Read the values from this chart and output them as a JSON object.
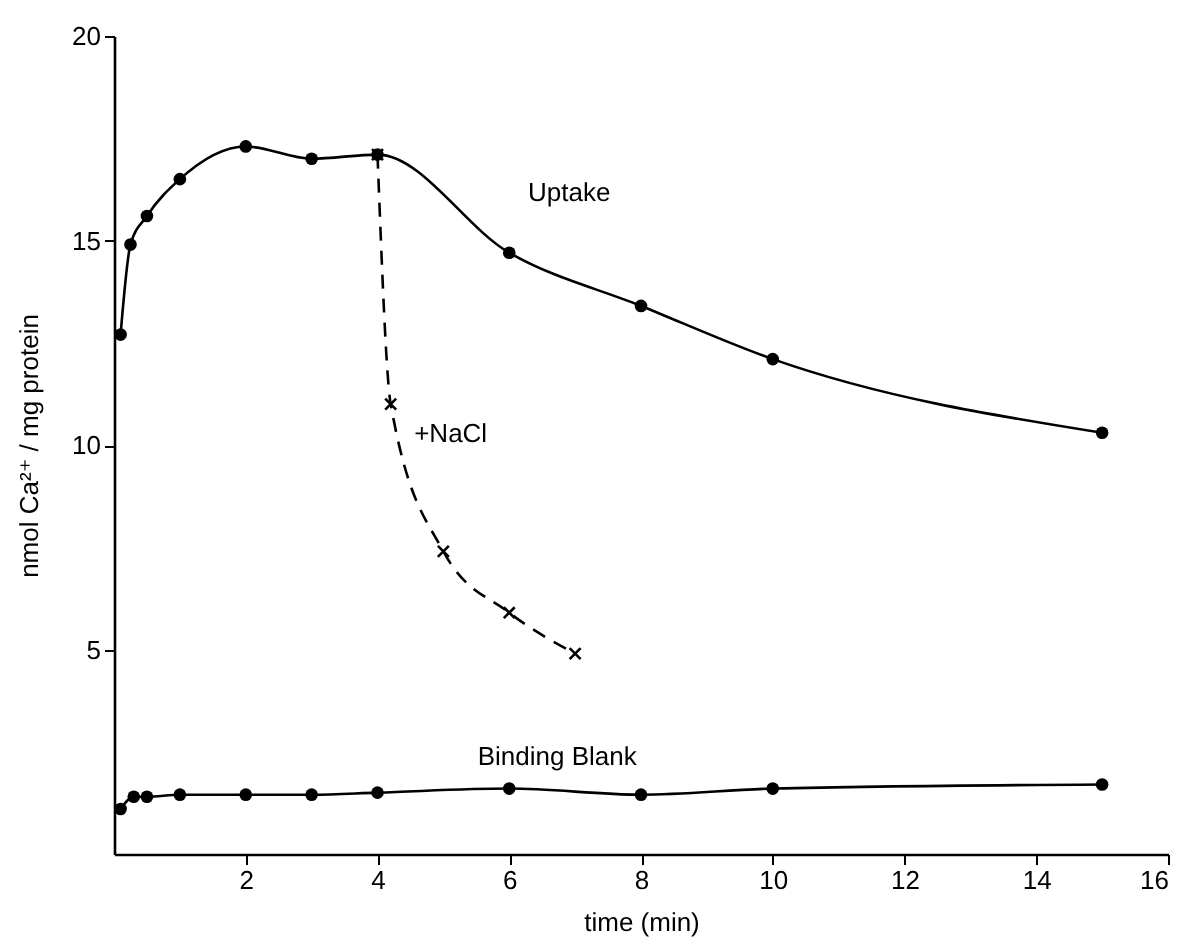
{
  "chart_data": {
    "type": "line",
    "xlabel": "time (min)",
    "ylabel": "nmol Ca²⁺ / mg protein",
    "xlim": [
      0,
      16
    ],
    "xticks": [
      2,
      4,
      6,
      8,
      10,
      12,
      14,
      16
    ],
    "ylim": [
      0,
      20
    ],
    "yticks": [
      5,
      10,
      15,
      20
    ],
    "grid": false,
    "legend": false,
    "series": [
      {
        "name": "Uptake",
        "color": "#000000",
        "marker": "circle",
        "line_style": "solid",
        "x": [
          0.1,
          0.25,
          0.5,
          1,
          2,
          3,
          4,
          6,
          8,
          10,
          15
        ],
        "values": [
          12.7,
          14.9,
          15.6,
          16.5,
          17.3,
          17.0,
          17.1,
          14.7,
          13.4,
          12.1,
          10.3
        ]
      },
      {
        "name": "+NaCl",
        "color": "#000000",
        "marker": "cross",
        "line_style": "dashed",
        "x": [
          4,
          4.2,
          5,
          6,
          7
        ],
        "values": [
          17.1,
          11.0,
          7.4,
          5.9,
          4.9
        ]
      },
      {
        "name": "Binding Blank",
        "color": "#000000",
        "marker": "circle",
        "line_style": "solid",
        "x": [
          0.1,
          0.3,
          0.5,
          1,
          2,
          3,
          4,
          6,
          8,
          10,
          15
        ],
        "values": [
          1.1,
          1.4,
          1.4,
          1.45,
          1.45,
          1.45,
          1.5,
          1.6,
          1.45,
          1.6,
          1.7
        ]
      }
    ]
  }
}
